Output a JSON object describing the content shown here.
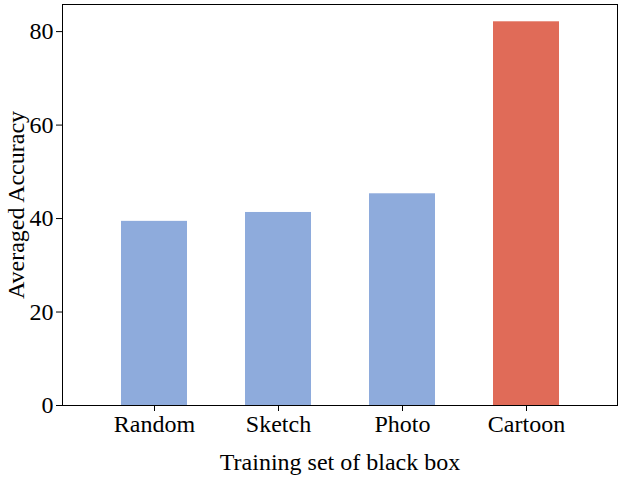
{
  "chart_data": {
    "type": "bar",
    "x_label": "Training set of black box",
    "y_label": "Averaged Accuracy",
    "categories": [
      "Random",
      "Sketch",
      "Photo",
      "Cartoon"
    ],
    "values": [
      39.4,
      41.3,
      45.3,
      82.1
    ],
    "colors": [
      "#8eabdc",
      "#8eabdc",
      "#8eabdc",
      "#e06b58"
    ],
    "ylim": [
      0,
      85.8
    ],
    "yticks": [
      0,
      20,
      40,
      60,
      80
    ],
    "grid": false
  }
}
